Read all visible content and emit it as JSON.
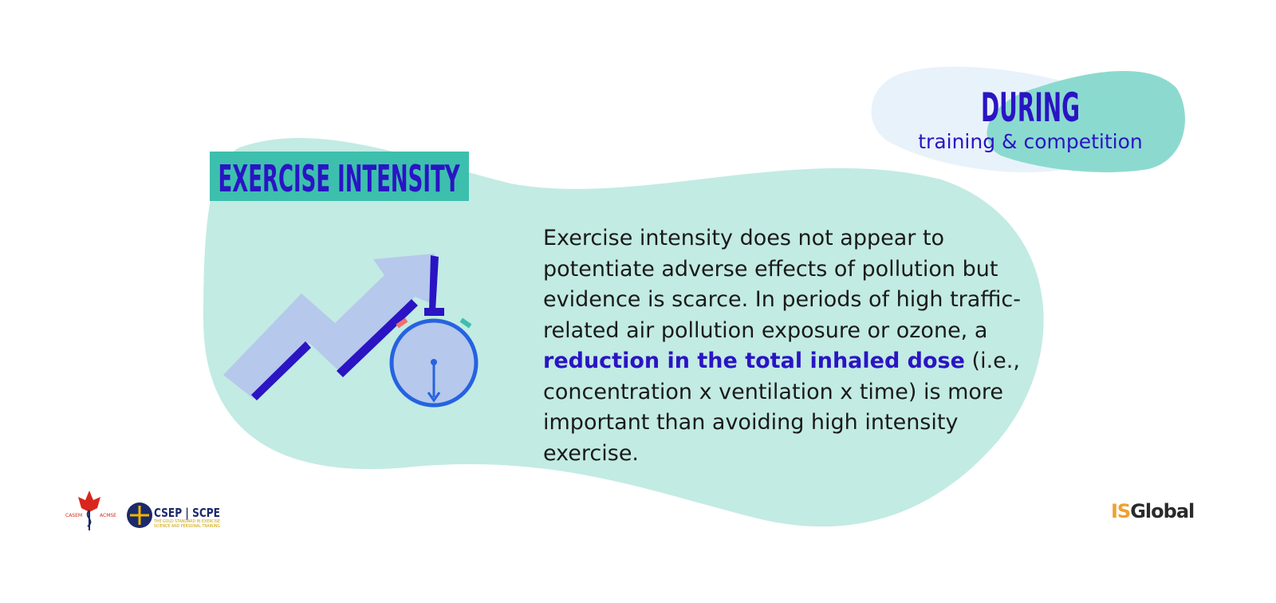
{
  "header": {
    "title": "DURING",
    "subtitle": "training & competition"
  },
  "section": {
    "title": "EXERCISE INTENSITY"
  },
  "body": [
    "Exercise intensity does not appear to potentiate adverse effects of pollution but evidence is scarce. In periods of high traffic-related air pollution exposure or ozone, a ",
    "reduction in the total inhaled dose",
    " (i.e., concentration x ventilation x time) is more important than avoiding high intensity exercise."
  ],
  "logos": {
    "casem": "CASEM",
    "acmse": "ACMSE",
    "csep": "CSEP | SCPE",
    "csep_tagline": [
      "THE GOLD STANDARD IN EXERCISE",
      "SCIENCE AND PERSONAL TRAINING"
    ],
    "isglobal": [
      "IS",
      "Global"
    ]
  }
}
